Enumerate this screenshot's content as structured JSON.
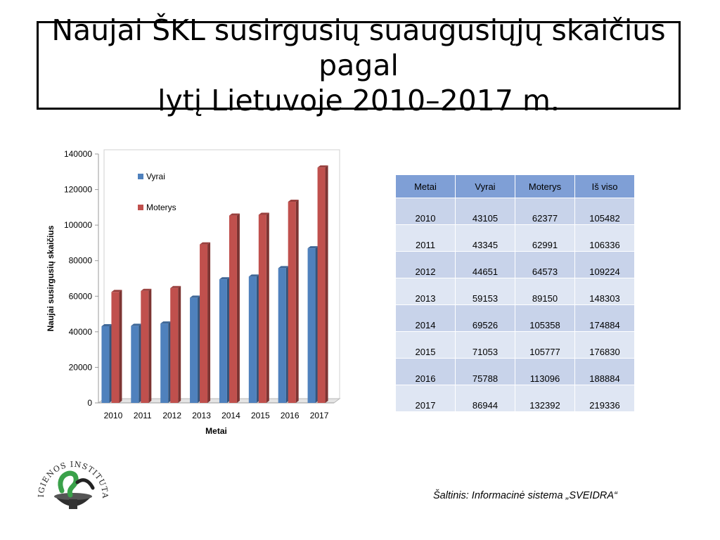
{
  "slide": {
    "title_line1": "Naujai ŠKL susirgusių suaugusiųjų skaičius pagal",
    "title_line2": "lytį Lietuvoje 2010–2017 m.",
    "source": "Šaltinis: Informacinė sistema „SVEIDRA“",
    "logo_text": "HIGIENOS INSTITUTAS"
  },
  "chart_data": {
    "type": "bar",
    "categories": [
      "2010",
      "2011",
      "2012",
      "2013",
      "2014",
      "2015",
      "2016",
      "2017"
    ],
    "series": [
      {
        "name": "Vyrai",
        "color": "#4f81bd",
        "values": [
          43105,
          43345,
          44651,
          59153,
          69526,
          71053,
          75788,
          86944
        ]
      },
      {
        "name": "Moterys",
        "color": "#c0504d",
        "values": [
          62377,
          62991,
          64573,
          89150,
          105358,
          105777,
          113096,
          132392
        ]
      }
    ],
    "xlabel": "Metai",
    "ylabel": "Naujai susirgusių skaičius",
    "ylim": [
      0,
      140000
    ],
    "yticks": [
      0,
      20000,
      40000,
      60000,
      80000,
      100000,
      120000,
      140000
    ],
    "legend": "top-left inside plot"
  },
  "table": {
    "headers": [
      "Metai",
      "Vyrai",
      "Moterys",
      "Iš viso"
    ],
    "rows": [
      [
        "2010",
        "43105",
        "62377",
        "105482"
      ],
      [
        "2011",
        "43345",
        "62991",
        "106336"
      ],
      [
        "2012",
        "44651",
        "64573",
        "109224"
      ],
      [
        "2013",
        "59153",
        "89150",
        "148303"
      ],
      [
        "2014",
        "69526",
        "105358",
        "174884"
      ],
      [
        "2015",
        "71053",
        "105777",
        "176830"
      ],
      [
        "2016",
        "75788",
        "113096",
        "188884"
      ],
      [
        "2017",
        "86944",
        "132392",
        "219336"
      ]
    ]
  }
}
